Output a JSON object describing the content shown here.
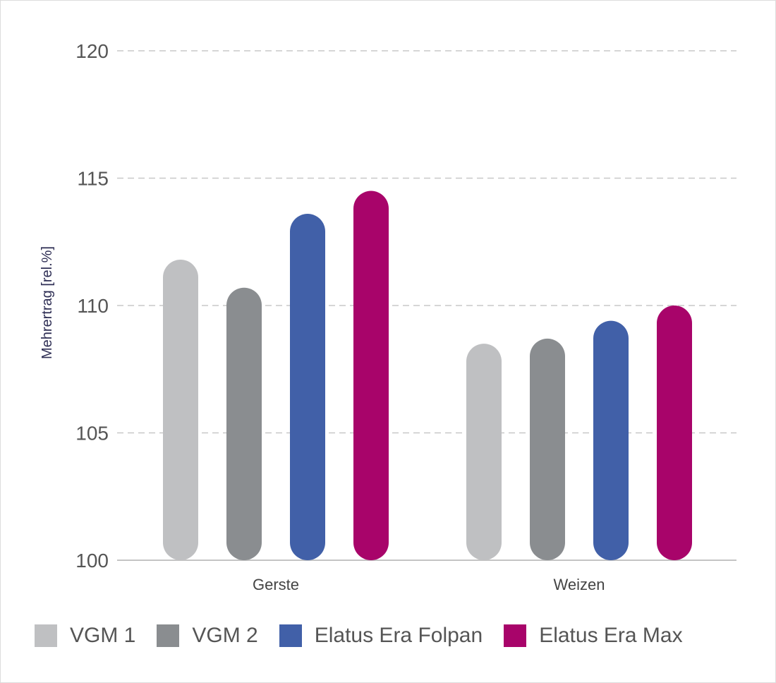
{
  "chart_data": {
    "type": "bar",
    "ylabel": "Mehrertrag [rel.%]",
    "xlabel": "",
    "ylim": [
      100,
      120
    ],
    "yticks": [
      100,
      105,
      110,
      115,
      120
    ],
    "grid": true,
    "legend_position": "bottom",
    "categories": [
      "Gerste",
      "Weizen"
    ],
    "series": [
      {
        "name": "VGM 1",
        "color": "#bfc0c2",
        "values": [
          111.8,
          108.5
        ]
      },
      {
        "name": "VGM 2",
        "color": "#8a8d90",
        "values": [
          110.7,
          108.7
        ]
      },
      {
        "name": "Elatus Era Folpan",
        "color": "#4160a8",
        "values": [
          113.6,
          109.4
        ]
      },
      {
        "name": "Elatus Era Max",
        "color": "#a8046a",
        "values": [
          114.5,
          110.0
        ]
      }
    ]
  }
}
